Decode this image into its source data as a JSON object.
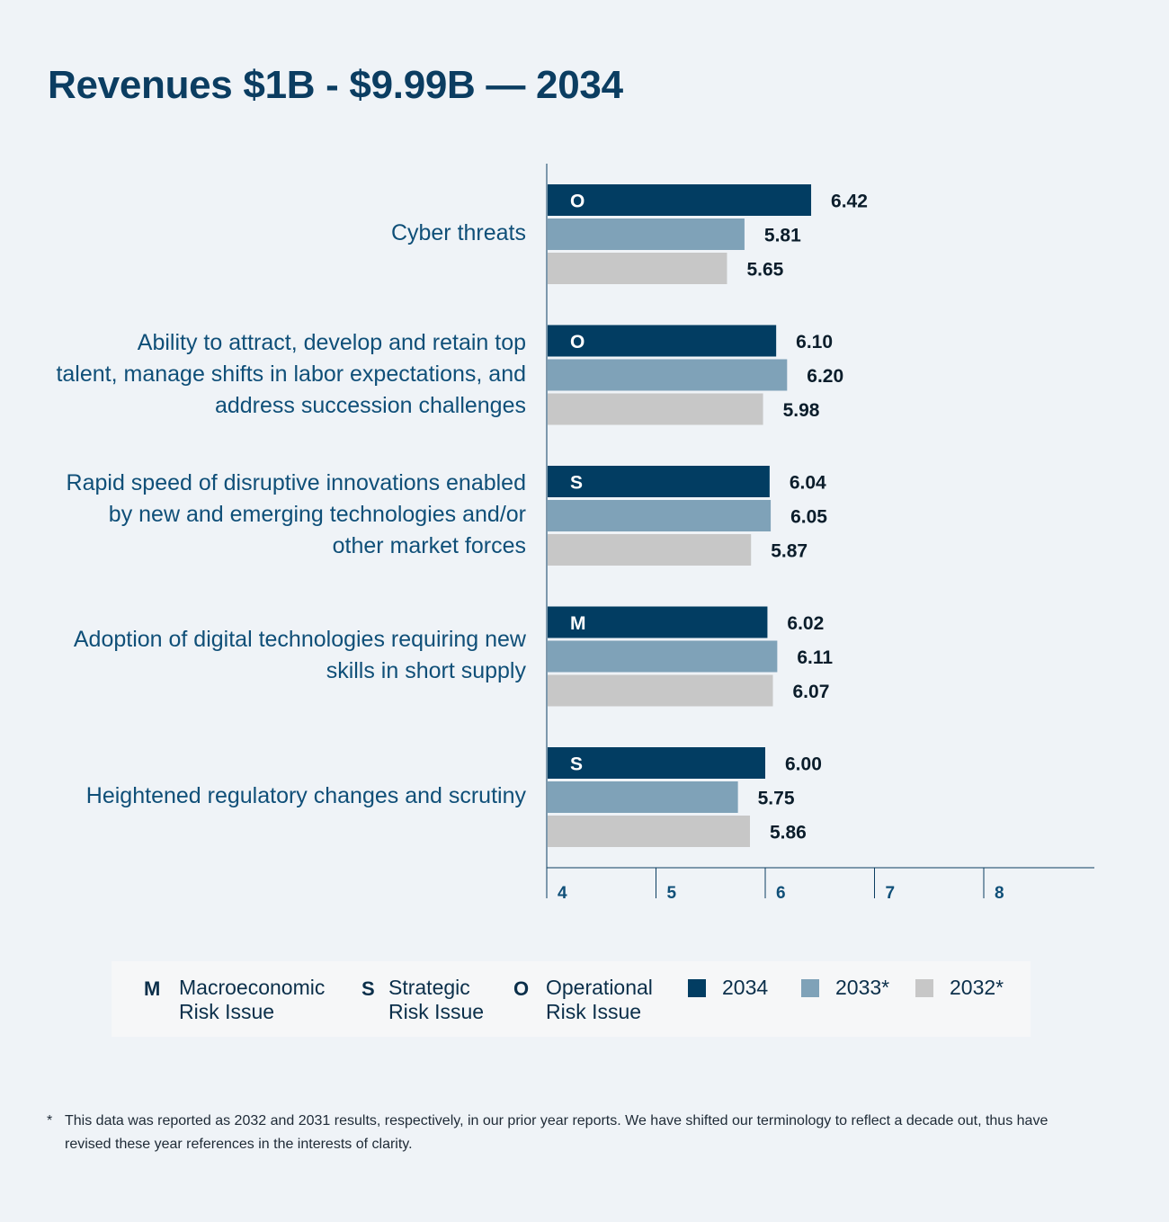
{
  "chart_data": {
    "type": "bar",
    "orientation": "horizontal",
    "title": "Revenues $1B - $9.99B — 2034",
    "categories": [
      [
        "Cyber threats"
      ],
      [
        "Ability to attract, develop and retain top",
        "talent, manage shifts in labor expectations, and",
        "address succession challenges"
      ],
      [
        "Rapid speed of disruptive innovations enabled",
        "by new and emerging technologies and/or",
        "other market forces"
      ],
      [
        "Adoption of digital technologies requiring new",
        "skills in short supply"
      ],
      [
        "Heightened regulatory changes and scrutiny"
      ]
    ],
    "risk_type_codes": [
      "O",
      "O",
      "S",
      "M",
      "S"
    ],
    "series": [
      {
        "name": "2034",
        "color": "#023d62",
        "values": [
          6.42,
          6.1,
          6.04,
          6.02,
          6.0
        ]
      },
      {
        "name": "2033*",
        "color": "#7fa2b8",
        "values": [
          5.81,
          6.2,
          6.05,
          6.11,
          5.75
        ]
      },
      {
        "name": "2032*",
        "color": "#c7c7c7",
        "values": [
          5.65,
          5.98,
          5.87,
          6.07,
          5.86
        ]
      }
    ],
    "value_labels": [
      [
        "6.42",
        "6.10",
        "6.04",
        "6.02",
        "6.00"
      ],
      [
        "5.81",
        "6.20",
        "6.05",
        "6.11",
        "5.75"
      ],
      [
        "5.65",
        "5.98",
        "5.87",
        "6.07",
        "5.86"
      ]
    ],
    "xlim": [
      4,
      9
    ],
    "x_ticks": [
      "4",
      "5",
      "6",
      "7",
      "8"
    ],
    "x_tick_values": [
      4,
      5,
      6,
      7,
      8
    ],
    "grid": false,
    "legend_placement": "bottom"
  },
  "legend": {
    "risk_types": [
      {
        "code": "M",
        "line1": "Macroeconomic",
        "line2": "Risk Issue"
      },
      {
        "code": "S",
        "line1": "Strategic",
        "line2": "Risk Issue"
      },
      {
        "code": "O",
        "line1": "Operational",
        "line2": "Risk Issue"
      }
    ],
    "years": [
      "2034",
      "2033*",
      "2032*"
    ]
  },
  "footnote": {
    "mark": "*",
    "text": "This data was reported as 2032 and 2031 results, respectively, in our prior year reports. We have shifted our terminology to reflect a decade out, thus have revised these year references in the interests of clarity."
  },
  "colors": {
    "background": "#eff3f7",
    "title": "#0b3d61",
    "category_label": "#0f4f78",
    "axis": "#0b3d61"
  }
}
